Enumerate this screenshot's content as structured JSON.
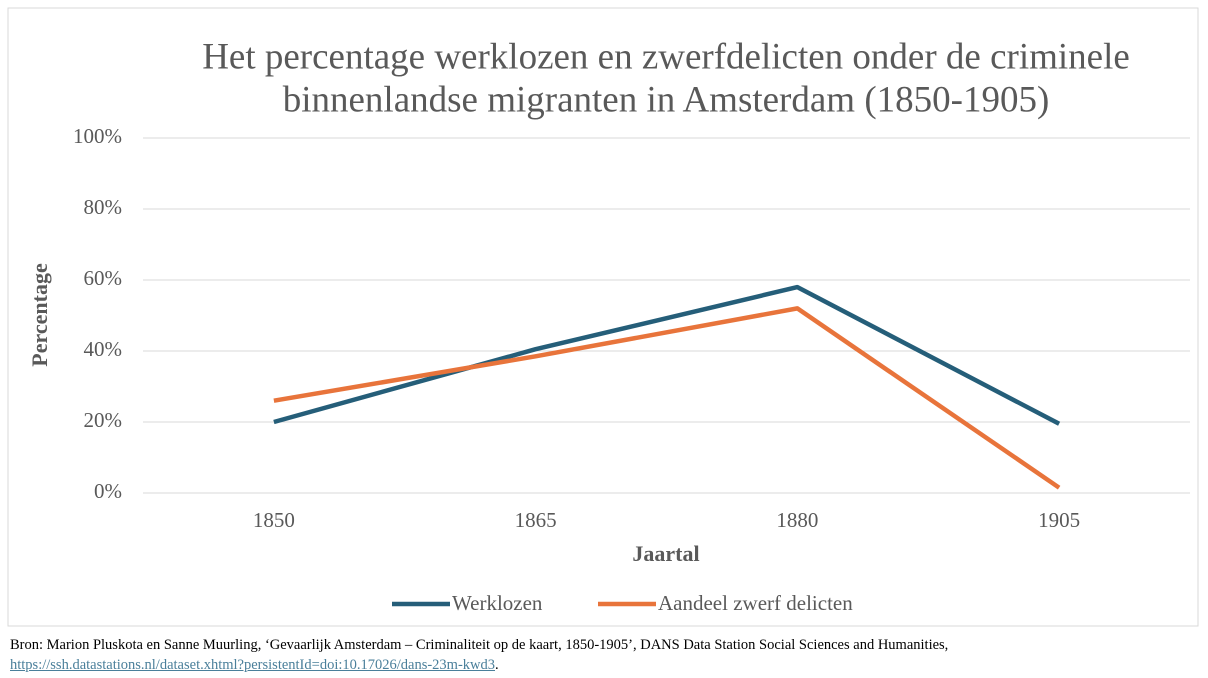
{
  "chart_data": {
    "type": "line",
    "title": [
      "Het percentage werklozen en zwerfdelicten onder de criminele",
      "binnenlandse migranten in Amsterdam (1850-1905)"
    ],
    "x_label": "Jaartal",
    "y_label": "Percentage",
    "categories": [
      "1850",
      "1865",
      "1880",
      "1905"
    ],
    "series": [
      {
        "name": "Werklozen",
        "color": "#255e79",
        "values": [
          20,
          40.5,
          58,
          19.5
        ]
      },
      {
        "name": "Aandeel zwerf delicten",
        "color": "#e8743b",
        "values": [
          26,
          38.5,
          52,
          1.5
        ]
      }
    ],
    "ylim": [
      0,
      100
    ],
    "yticks": [
      {
        "value": 0,
        "label": "0%"
      },
      {
        "value": 20,
        "label": "20%"
      },
      {
        "value": 40,
        "label": "40%"
      },
      {
        "value": 60,
        "label": "60%"
      },
      {
        "value": 80,
        "label": "80%"
      },
      {
        "value": 100,
        "label": "100%"
      }
    ],
    "grid": true,
    "legend": "bottom"
  },
  "source": {
    "text": "Bron: Marion Pluskota en Sanne Muurling, ‘Gevaarlijk Amsterdam – Criminaliteit op de kaart, 1850-1905’, DANS Data Station Social Sciences and Humanities, ",
    "link": "https://ssh.datastations.nl/dataset.xhtml?persistentId=doi:10.17026/dans-23m-kwd3",
    "end": "."
  }
}
